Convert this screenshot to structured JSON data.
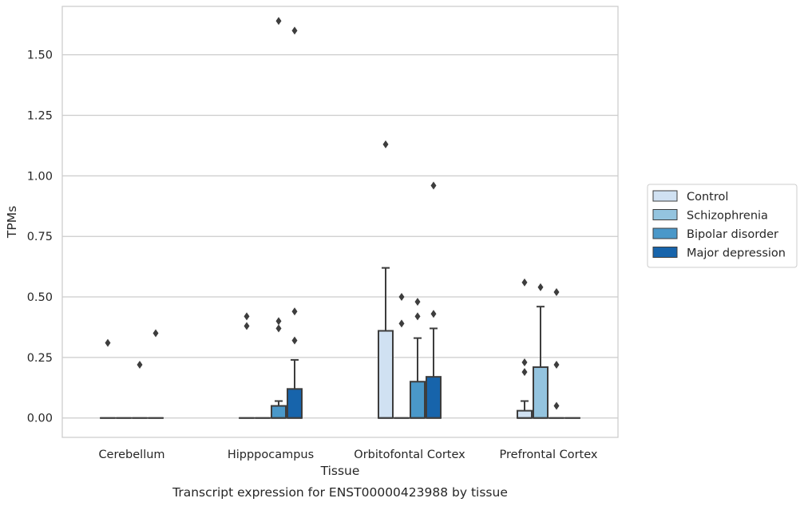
{
  "chart_data": {
    "type": "box",
    "caption": "Transcript expression for ENST00000423988 by tissue",
    "xlabel": "Tissue",
    "ylabel": "TPMs",
    "ylim": [
      -0.08,
      1.7
    ],
    "yticks": [
      "0.00",
      "0.25",
      "0.50",
      "0.75",
      "1.00",
      "1.25",
      "1.50"
    ],
    "ytick_values": [
      0,
      0.25,
      0.5,
      0.75,
      1.0,
      1.25,
      1.5
    ],
    "categories": [
      "Cerebellum",
      "Hipppocampus",
      "Orbitofontal Cortex",
      "Prefrontal Cortex"
    ],
    "grid": "horizontal",
    "legend_position": "right",
    "series": [
      {
        "name": "Control",
        "color": "#d0e1f2",
        "boxes": [
          {
            "q1": 0,
            "median": 0,
            "q3": 0,
            "whislo": 0,
            "whishi": 0,
            "fliers": [
              0.31
            ]
          },
          {
            "q1": 0,
            "median": 0,
            "q3": 0,
            "whislo": 0,
            "whishi": 0,
            "fliers": [
              0.42,
              0.38
            ]
          },
          {
            "q1": 0,
            "median": 0,
            "q3": 0.36,
            "whislo": 0,
            "whishi": 0.62,
            "fliers": [
              1.13
            ]
          },
          {
            "q1": 0,
            "median": 0,
            "q3": 0.03,
            "whislo": 0,
            "whishi": 0.07,
            "fliers": [
              0.56,
              0.23,
              0.19
            ]
          }
        ]
      },
      {
        "name": "Schizophrenia",
        "color": "#94c4df",
        "boxes": [
          {
            "q1": 0,
            "median": 0,
            "q3": 0,
            "whislo": 0,
            "whishi": 0,
            "fliers": []
          },
          {
            "q1": 0,
            "median": 0,
            "q3": 0,
            "whislo": 0,
            "whishi": 0,
            "fliers": []
          },
          {
            "q1": 0,
            "median": 0,
            "q3": 0,
            "whislo": 0,
            "whishi": 0,
            "fliers": [
              0.5,
              0.39
            ]
          },
          {
            "q1": 0,
            "median": 0,
            "q3": 0.21,
            "whislo": 0,
            "whishi": 0.46,
            "fliers": [
              0.54
            ]
          }
        ]
      },
      {
        "name": "Bipolar disorder",
        "color": "#4a98c9",
        "boxes": [
          {
            "q1": 0,
            "median": 0,
            "q3": 0,
            "whislo": 0,
            "whishi": 0,
            "fliers": [
              0.22
            ]
          },
          {
            "q1": 0,
            "median": 0,
            "q3": 0.05,
            "whislo": 0,
            "whishi": 0.07,
            "fliers": [
              1.64,
              0.4,
              0.37
            ]
          },
          {
            "q1": 0,
            "median": 0,
            "q3": 0.15,
            "whislo": 0,
            "whishi": 0.33,
            "fliers": [
              0.48,
              0.42
            ]
          },
          {
            "q1": 0,
            "median": 0,
            "q3": 0,
            "whislo": 0,
            "whishi": 0,
            "fliers": [
              0.52,
              0.22,
              0.05
            ]
          }
        ]
      },
      {
        "name": "Major depression",
        "color": "#1764ab",
        "boxes": [
          {
            "q1": 0,
            "median": 0,
            "q3": 0,
            "whislo": 0,
            "whishi": 0,
            "fliers": [
              0.35
            ]
          },
          {
            "q1": 0,
            "median": 0,
            "q3": 0.12,
            "whislo": 0,
            "whishi": 0.24,
            "fliers": [
              1.6,
              0.44,
              0.32
            ]
          },
          {
            "q1": 0,
            "median": 0,
            "q3": 0.17,
            "whislo": 0,
            "whishi": 0.37,
            "fliers": [
              0.96,
              0.43
            ]
          },
          {
            "q1": 0,
            "median": 0,
            "q3": 0,
            "whislo": 0,
            "whishi": 0,
            "fliers": []
          }
        ]
      }
    ]
  }
}
